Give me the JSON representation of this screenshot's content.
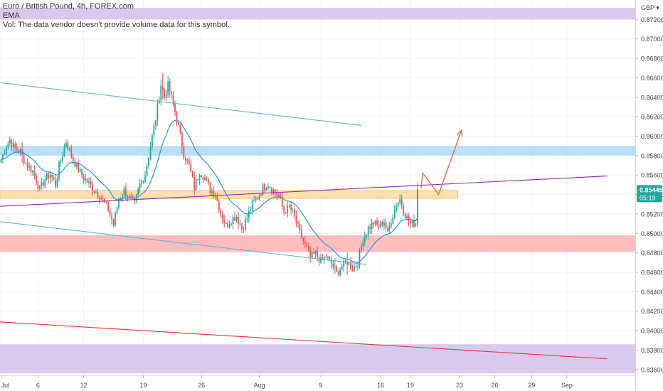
{
  "legend": {
    "symbol_line": "Euro / British Pound, 4h, FOREX.com",
    "ema_line": "EMA",
    "volume_line": "Vol: The data vendor doesn't provide volume data for this symbol."
  },
  "currency_label": "GBP",
  "currency_menu_glyph": "▾",
  "price_badge": {
    "price": "0.85445",
    "countdown": "05:19"
  },
  "colors": {
    "up": "#26a69a",
    "down": "#ef5350",
    "ema": "#2196f3",
    "channel_blue": "#5fb2dc",
    "red_line": "#e53935",
    "purple_line": "#9c27b0",
    "arrow": "#ef6c38",
    "zone_blue": "#bbdefb",
    "zone_orange": "#ffe0b2",
    "zone_red": "#ffbdbd",
    "zone_purple": "#d9c9ee",
    "badge": "#26a69a"
  },
  "chart_data": {
    "type": "candlestick",
    "title": "Euro / British Pound, 4h, FOREX.com",
    "ylim": [
      0.8354,
      0.874
    ],
    "y_ticks": [
      "0.87200",
      "0.87000",
      "0.86800",
      "0.86600",
      "0.86400",
      "0.86200",
      "0.86000",
      "0.85800",
      "0.85600",
      "0.85400",
      "0.85200",
      "0.85000",
      "0.84800",
      "0.84600",
      "0.84400",
      "0.84200",
      "0.84000",
      "0.83800",
      "0.83600"
    ],
    "x_ticks": [
      {
        "i": 0,
        "label": "Jul"
      },
      {
        "i": 21,
        "label": "6"
      },
      {
        "i": 47,
        "label": "12"
      },
      {
        "i": 81,
        "label": "19"
      },
      {
        "i": 114,
        "label": "26"
      },
      {
        "i": 147,
        "label": "Aug"
      },
      {
        "i": 182,
        "label": "9"
      },
      {
        "i": 216,
        "label": "16"
      },
      {
        "i": 233,
        "label": "19"
      },
      {
        "i": 261,
        "label": "23"
      },
      {
        "i": 281,
        "label": "26"
      },
      {
        "i": 302,
        "label": "29"
      },
      {
        "i": 322,
        "label": "Sep"
      }
    ],
    "anchors": [
      [
        0,
        0.8576
      ],
      [
        3,
        0.859
      ],
      [
        5,
        0.8596
      ],
      [
        7,
        0.8589
      ],
      [
        11,
        0.8584
      ],
      [
        14,
        0.8572
      ],
      [
        18,
        0.8564
      ],
      [
        22,
        0.8545
      ],
      [
        25,
        0.8556
      ],
      [
        28,
        0.8561
      ],
      [
        31,
        0.855
      ],
      [
        33,
        0.8569
      ],
      [
        37,
        0.8595
      ],
      [
        40,
        0.858
      ],
      [
        43,
        0.8569
      ],
      [
        46,
        0.8559
      ],
      [
        50,
        0.8551
      ],
      [
        53,
        0.8545
      ],
      [
        57,
        0.8537
      ],
      [
        61,
        0.8525
      ],
      [
        64,
        0.8509
      ],
      [
        67,
        0.8536
      ],
      [
        70,
        0.8544
      ],
      [
        73,
        0.8536
      ],
      [
        76,
        0.853
      ],
      [
        79,
        0.855
      ],
      [
        82,
        0.8561
      ],
      [
        85,
        0.859
      ],
      [
        88,
        0.8618
      ],
      [
        91,
        0.8653
      ],
      [
        93,
        0.864
      ],
      [
        95,
        0.8652
      ],
      [
        98,
        0.8633
      ],
      [
        101,
        0.8609
      ],
      [
        104,
        0.8582
      ],
      [
        107,
        0.857
      ],
      [
        110,
        0.8547
      ],
      [
        113,
        0.8564
      ],
      [
        116,
        0.8557
      ],
      [
        119,
        0.8545
      ],
      [
        122,
        0.854
      ],
      [
        125,
        0.8521
      ],
      [
        128,
        0.8508
      ],
      [
        131,
        0.8514
      ],
      [
        134,
        0.8518
      ],
      [
        137,
        0.8505
      ],
      [
        140,
        0.8516
      ],
      [
        143,
        0.853
      ],
      [
        146,
        0.8537
      ],
      [
        149,
        0.8547
      ],
      [
        152,
        0.8551
      ],
      [
        155,
        0.8544
      ],
      [
        158,
        0.8538
      ],
      [
        161,
        0.8522
      ],
      [
        164,
        0.8528
      ],
      [
        167,
        0.8517
      ],
      [
        170,
        0.85
      ],
      [
        173,
        0.8488
      ],
      [
        176,
        0.8475
      ],
      [
        179,
        0.8479
      ],
      [
        182,
        0.8471
      ],
      [
        185,
        0.8476
      ],
      [
        188,
        0.8469
      ],
      [
        191,
        0.8459
      ],
      [
        194,
        0.8466
      ],
      [
        197,
        0.8471
      ],
      [
        200,
        0.8464
      ],
      [
        203,
        0.847
      ],
      [
        206,
        0.8495
      ],
      [
        209,
        0.8505
      ],
      [
        212,
        0.8511
      ],
      [
        215,
        0.8507
      ],
      [
        218,
        0.8513
      ],
      [
        220,
        0.8499
      ],
      [
        222,
        0.8514
      ],
      [
        225,
        0.853
      ],
      [
        227,
        0.8535
      ],
      [
        229,
        0.8524
      ],
      [
        231,
        0.8516
      ],
      [
        233,
        0.851
      ],
      [
        236,
        0.8511
      ],
      [
        237,
        0.8545
      ]
    ],
    "annotations": {
      "zones": [
        {
          "name": "top-purple-zone",
          "y1": 0.8732,
          "y2": 0.872,
          "i1": -10,
          "i2": 400,
          "color": "zone_purple"
        },
        {
          "name": "blue-resistance-zone",
          "y1": 0.859,
          "y2": 0.858,
          "i1": -10,
          "i2": 400,
          "color": "zone_blue"
        },
        {
          "name": "orange-level-zone",
          "y1": 0.8544,
          "y2": 0.8536,
          "i1": -10,
          "i2": 260,
          "color": "zone_orange"
        },
        {
          "name": "red-support-zone",
          "y1": 0.8498,
          "y2": 0.8481,
          "i1": -10,
          "i2": 400,
          "color": "zone_red"
        },
        {
          "name": "bottom-purple-zone",
          "y1": 0.8386,
          "y2": 0.8356,
          "i1": -10,
          "i2": 400,
          "color": "zone_purple"
        }
      ],
      "lines": [
        {
          "name": "upper-channel-line",
          "i1": -10,
          "y1": 0.8657,
          "i2": 205,
          "y2": 0.8611,
          "color": "channel_blue"
        },
        {
          "name": "lower-channel-line",
          "i1": -10,
          "y1": 0.8514,
          "i2": 208,
          "y2": 0.8468,
          "color": "channel_blue"
        },
        {
          "name": "ascending-trend-line",
          "i1": -10,
          "y1": 0.8527,
          "i2": 345,
          "y2": 0.8559,
          "color": "purple_line"
        },
        {
          "name": "descending-red-line",
          "i1": -10,
          "y1": 0.841,
          "i2": 345,
          "y2": 0.8371,
          "color": "red_line"
        }
      ],
      "projection": [
        [
          239,
          0.8546
        ],
        [
          240,
          0.8562
        ],
        [
          249,
          0.854
        ],
        [
          262,
          0.8606
        ]
      ]
    }
  }
}
